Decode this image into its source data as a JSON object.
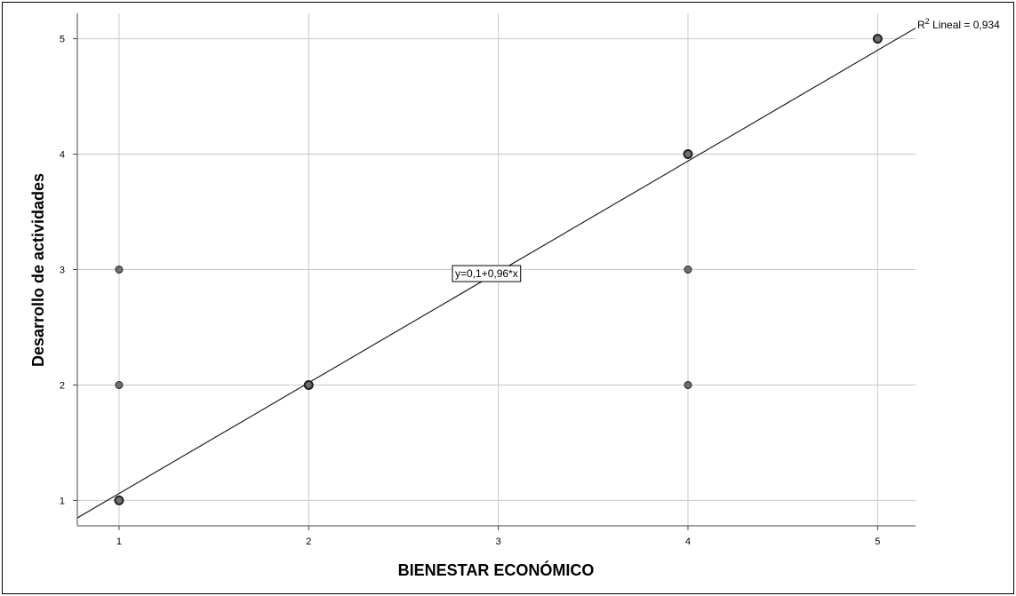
{
  "chart_data": {
    "type": "scatter",
    "xlabel": "BIENESTAR ECONÓMICO",
    "ylabel": "Desarrollo de actividades",
    "xlim": [
      0.78,
      5.2
    ],
    "ylim": [
      0.78,
      5.22
    ],
    "xticks": [
      "1",
      "2",
      "3",
      "4",
      "5"
    ],
    "yticks": [
      "1",
      "2",
      "3",
      "4",
      "5"
    ],
    "grid": true,
    "points": [
      {
        "x": 1,
        "y": 1,
        "bold": true
      },
      {
        "x": 1,
        "y": 2,
        "bold": false
      },
      {
        "x": 1,
        "y": 3,
        "bold": false
      },
      {
        "x": 2,
        "y": 2,
        "bold": true
      },
      {
        "x": 4,
        "y": 2,
        "bold": false
      },
      {
        "x": 4,
        "y": 3,
        "bold": false
      },
      {
        "x": 4,
        "y": 4,
        "bold": true
      },
      {
        "x": 5,
        "y": 5,
        "bold": true
      }
    ],
    "fit": {
      "intercept": 0.1,
      "slope": 0.96
    },
    "equation_label": "y=0,1+0,96*x",
    "r2_prefix": "R",
    "r2_sup": "2",
    "r2_text": " Lineal = 0,934",
    "colors": {
      "grid": "#c8c8c8",
      "point_fill": "#6e6e6e",
      "point_stroke": "#222222",
      "line": "#222222"
    }
  }
}
